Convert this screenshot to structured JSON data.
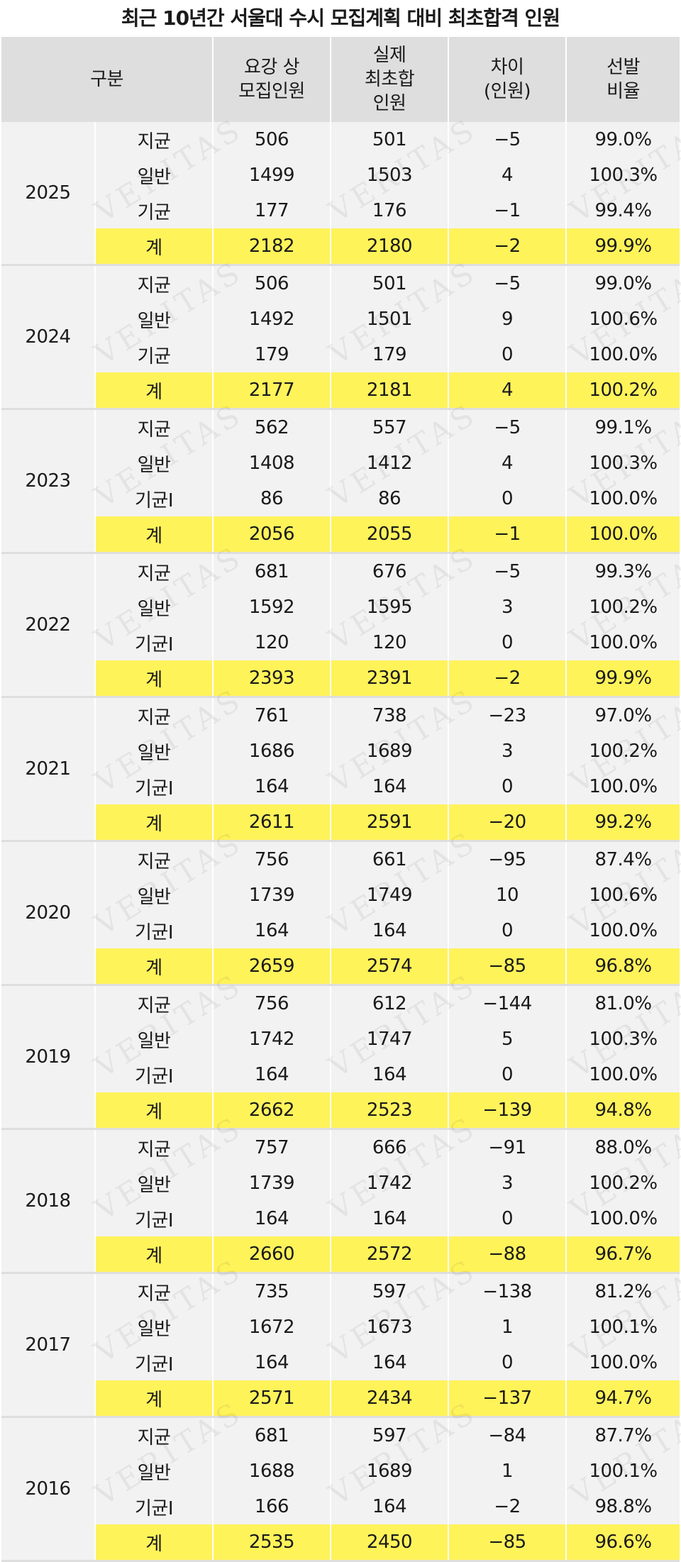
{
  "title": "최근 10년간 서울대 수시 모집계획 대비 최초합격 인원",
  "watermark": "VERITAS",
  "headers": {
    "category": "구분",
    "planned": "요강 상\n모집인원",
    "actual": "실제\n최초합\n인원",
    "diff": "차이\n(인원)",
    "ratio": "선발\n비율"
  },
  "years": [
    {
      "year": "2025",
      "rows": [
        {
          "type": "지균",
          "planned": "506",
          "actual": "501",
          "diff": "−5",
          "ratio": "99.0%"
        },
        {
          "type": "일반",
          "planned": "1499",
          "actual": "1503",
          "diff": "4",
          "ratio": "100.3%"
        },
        {
          "type": "기균",
          "planned": "177",
          "actual": "176",
          "diff": "−1",
          "ratio": "99.4%"
        },
        {
          "type": "계",
          "planned": "2182",
          "actual": "2180",
          "diff": "−2",
          "ratio": "99.9%"
        }
      ]
    },
    {
      "year": "2024",
      "rows": [
        {
          "type": "지균",
          "planned": "506",
          "actual": "501",
          "diff": "−5",
          "ratio": "99.0%"
        },
        {
          "type": "일반",
          "planned": "1492",
          "actual": "1501",
          "diff": "9",
          "ratio": "100.6%"
        },
        {
          "type": "기균",
          "planned": "179",
          "actual": "179",
          "diff": "0",
          "ratio": "100.0%"
        },
        {
          "type": "계",
          "planned": "2177",
          "actual": "2181",
          "diff": "4",
          "ratio": "100.2%"
        }
      ]
    },
    {
      "year": "2023",
      "rows": [
        {
          "type": "지균",
          "planned": "562",
          "actual": "557",
          "diff": "−5",
          "ratio": "99.1%"
        },
        {
          "type": "일반",
          "planned": "1408",
          "actual": "1412",
          "diff": "4",
          "ratio": "100.3%"
        },
        {
          "type": "기균I",
          "planned": "86",
          "actual": "86",
          "diff": "0",
          "ratio": "100.0%"
        },
        {
          "type": "계",
          "planned": "2056",
          "actual": "2055",
          "diff": "−1",
          "ratio": "100.0%"
        }
      ]
    },
    {
      "year": "2022",
      "rows": [
        {
          "type": "지균",
          "planned": "681",
          "actual": "676",
          "diff": "−5",
          "ratio": "99.3%"
        },
        {
          "type": "일반",
          "planned": "1592",
          "actual": "1595",
          "diff": "3",
          "ratio": "100.2%"
        },
        {
          "type": "기균I",
          "planned": "120",
          "actual": "120",
          "diff": "0",
          "ratio": "100.0%"
        },
        {
          "type": "계",
          "planned": "2393",
          "actual": "2391",
          "diff": "−2",
          "ratio": "99.9%"
        }
      ]
    },
    {
      "year": "2021",
      "rows": [
        {
          "type": "지균",
          "planned": "761",
          "actual": "738",
          "diff": "−23",
          "ratio": "97.0%"
        },
        {
          "type": "일반",
          "planned": "1686",
          "actual": "1689",
          "diff": "3",
          "ratio": "100.2%"
        },
        {
          "type": "기균I",
          "planned": "164",
          "actual": "164",
          "diff": "0",
          "ratio": "100.0%"
        },
        {
          "type": "계",
          "planned": "2611",
          "actual": "2591",
          "diff": "−20",
          "ratio": "99.2%"
        }
      ]
    },
    {
      "year": "2020",
      "rows": [
        {
          "type": "지균",
          "planned": "756",
          "actual": "661",
          "diff": "−95",
          "ratio": "87.4%"
        },
        {
          "type": "일반",
          "planned": "1739",
          "actual": "1749",
          "diff": "10",
          "ratio": "100.6%"
        },
        {
          "type": "기균I",
          "planned": "164",
          "actual": "164",
          "diff": "0",
          "ratio": "100.0%"
        },
        {
          "type": "계",
          "planned": "2659",
          "actual": "2574",
          "diff": "−85",
          "ratio": "96.8%"
        }
      ]
    },
    {
      "year": "2019",
      "rows": [
        {
          "type": "지균",
          "planned": "756",
          "actual": "612",
          "diff": "−144",
          "ratio": "81.0%"
        },
        {
          "type": "일반",
          "planned": "1742",
          "actual": "1747",
          "diff": "5",
          "ratio": "100.3%"
        },
        {
          "type": "기균I",
          "planned": "164",
          "actual": "164",
          "diff": "0",
          "ratio": "100.0%"
        },
        {
          "type": "계",
          "planned": "2662",
          "actual": "2523",
          "diff": "−139",
          "ratio": "94.8%"
        }
      ]
    },
    {
      "year": "2018",
      "rows": [
        {
          "type": "지균",
          "planned": "757",
          "actual": "666",
          "diff": "−91",
          "ratio": "88.0%"
        },
        {
          "type": "일반",
          "planned": "1739",
          "actual": "1742",
          "diff": "3",
          "ratio": "100.2%"
        },
        {
          "type": "기균I",
          "planned": "164",
          "actual": "164",
          "diff": "0",
          "ratio": "100.0%"
        },
        {
          "type": "계",
          "planned": "2660",
          "actual": "2572",
          "diff": "−88",
          "ratio": "96.7%"
        }
      ]
    },
    {
      "year": "2017",
      "rows": [
        {
          "type": "지균",
          "planned": "735",
          "actual": "597",
          "diff": "−138",
          "ratio": "81.2%"
        },
        {
          "type": "일반",
          "planned": "1672",
          "actual": "1673",
          "diff": "1",
          "ratio": "100.1%"
        },
        {
          "type": "기균I",
          "planned": "164",
          "actual": "164",
          "diff": "0",
          "ratio": "100.0%"
        },
        {
          "type": "계",
          "planned": "2571",
          "actual": "2434",
          "diff": "−137",
          "ratio": "94.7%"
        }
      ]
    },
    {
      "year": "2016",
      "rows": [
        {
          "type": "지균",
          "planned": "681",
          "actual": "597",
          "diff": "−84",
          "ratio": "87.7%"
        },
        {
          "type": "일반",
          "planned": "1688",
          "actual": "1689",
          "diff": "1",
          "ratio": "100.1%"
        },
        {
          "type": "기균I",
          "planned": "166",
          "actual": "164",
          "diff": "−2",
          "ratio": "98.8%"
        },
        {
          "type": "계",
          "planned": "2535",
          "actual": "2450",
          "diff": "−85",
          "ratio": "96.6%"
        }
      ]
    }
  ]
}
